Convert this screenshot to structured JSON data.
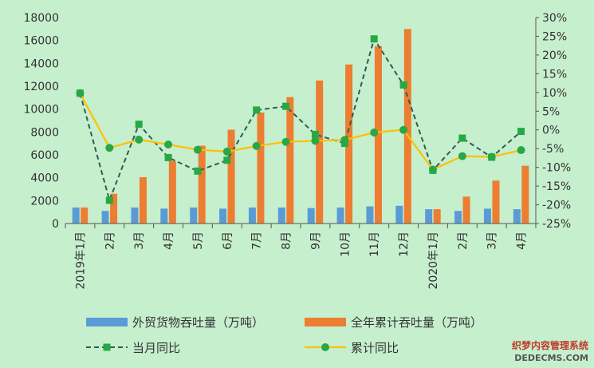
{
  "chart_data": {
    "type": "bar",
    "categories": [
      "2019年1月",
      "2月",
      "3月",
      "4月",
      "5月",
      "6月",
      "7月",
      "8月",
      "9月",
      "10月",
      "11月",
      "12月",
      "2020年1月",
      "2月",
      "3月",
      "4月"
    ],
    "left_axis": {
      "min": 0,
      "max": 18000,
      "step": 2000
    },
    "right_axis": {
      "min": -25,
      "max": 30,
      "step": 5,
      "unit": "%"
    },
    "series": [
      {
        "name": "外贸货物吞吐量（万吨）",
        "kind": "bar",
        "axis": "left",
        "color": "#5b9bd5",
        "values": [
          1400,
          1100,
          1400,
          1300,
          1400,
          1300,
          1400,
          1400,
          1350,
          1400,
          1500,
          1550,
          1250,
          1100,
          1300,
          1250
        ]
      },
      {
        "name": "全年累计吞吐量（万吨）",
        "kind": "bar",
        "axis": "left",
        "color": "#ed7d31",
        "values": [
          1400,
          2600,
          4050,
          5450,
          6800,
          8200,
          9700,
          11050,
          12500,
          13900,
          15500,
          17000,
          1250,
          2350,
          3750,
          5050
        ]
      },
      {
        "name": "当月同比",
        "kind": "line-dashed",
        "axis": "right",
        "color": "#2e5d57",
        "marker_color": "#27a845",
        "values": [
          9.8,
          -18.8,
          1.5,
          -7.4,
          -11,
          -8.1,
          5.3,
          6.3,
          -1.2,
          -3.6,
          24.3,
          12,
          -10.8,
          -2.2,
          -7.3,
          -0.4
        ]
      },
      {
        "name": "累计同比",
        "kind": "line",
        "axis": "right",
        "color": "#ffc000",
        "marker_color": "#27a845",
        "values": [
          9.8,
          -4.8,
          -2.6,
          -3.9,
          -5.3,
          -5.8,
          -4.3,
          -3.2,
          -2.9,
          -2.7,
          -0.7,
          0,
          -10.6,
          -7,
          -7.2,
          -5.4
        ]
      }
    ]
  },
  "watermark": {
    "line1": "织梦内容管理系统",
    "line2": "DEDECMS.COM"
  }
}
